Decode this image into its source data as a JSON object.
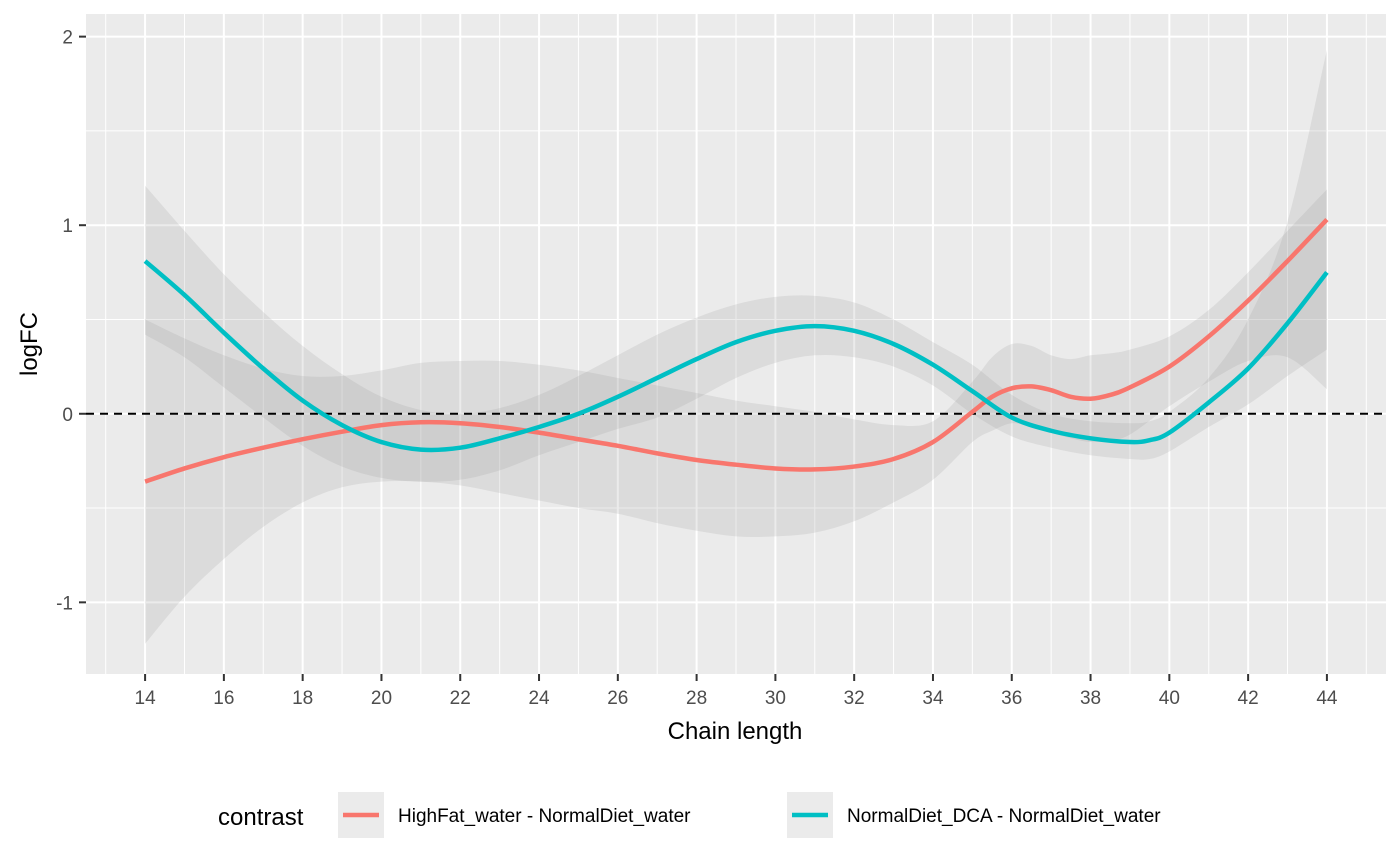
{
  "chart_data": {
    "type": "line",
    "xlabel": "Chain length",
    "ylabel": "logFC",
    "xlim": [
      12.5,
      45.5
    ],
    "ylim": [
      -1.38,
      2.12
    ],
    "x_ticks": [
      14,
      16,
      18,
      20,
      22,
      24,
      26,
      28,
      30,
      32,
      34,
      36,
      38,
      40,
      42,
      44
    ],
    "x_tick_labels": [
      "14",
      "16",
      "18",
      "20",
      "22",
      "24",
      "26",
      "28",
      "30",
      "32",
      "34",
      "36",
      "38",
      "40",
      "42",
      "44"
    ],
    "y_ticks": [
      -1,
      0,
      1,
      2
    ],
    "y_tick_labels": [
      "-1",
      "0",
      "1",
      "2"
    ],
    "reference_line": {
      "y": 0,
      "style": "dashed",
      "color": "#000000"
    },
    "grid": true,
    "background": "#ebebeb",
    "legend": {
      "title": "contrast",
      "position": "bottom",
      "items": [
        {
          "label": "HighFat_water - NormalDiet_water",
          "color": "#F8766D"
        },
        {
          "label": "NormalDiet_DCA - NormalDiet_water",
          "color": "#00BFC4"
        }
      ]
    },
    "series": [
      {
        "name": "HighFat_water - NormalDiet_water",
        "color": "#F8766D",
        "x": [
          14,
          15,
          16,
          17,
          18,
          19,
          20,
          21,
          22,
          23,
          24,
          25,
          26,
          27,
          28,
          29,
          30,
          31,
          32,
          33,
          34,
          35,
          35.5,
          36,
          36.5,
          37,
          37.5,
          38,
          38.5,
          39,
          40,
          41,
          42,
          43,
          44
        ],
        "y": [
          -0.36,
          -0.29,
          -0.23,
          -0.18,
          -0.135,
          -0.095,
          -0.06,
          -0.045,
          -0.05,
          -0.07,
          -0.1,
          -0.135,
          -0.17,
          -0.21,
          -0.245,
          -0.27,
          -0.29,
          -0.295,
          -0.28,
          -0.24,
          -0.15,
          0.01,
          0.09,
          0.135,
          0.145,
          0.125,
          0.09,
          0.08,
          0.1,
          0.14,
          0.25,
          0.41,
          0.6,
          0.81,
          1.03
        ],
        "ci_upper": [
          0.5,
          0.4,
          0.31,
          0.24,
          0.2,
          0.2,
          0.23,
          0.27,
          0.28,
          0.28,
          0.26,
          0.23,
          0.19,
          0.15,
          0.11,
          0.07,
          0.04,
          0.01,
          -0.03,
          -0.06,
          -0.04,
          0.17,
          0.3,
          0.37,
          0.36,
          0.31,
          0.29,
          0.31,
          0.32,
          0.34,
          0.41,
          0.55,
          0.75,
          0.97,
          1.19
        ],
        "ci_lower": [
          -1.22,
          -0.97,
          -0.77,
          -0.6,
          -0.47,
          -0.39,
          -0.36,
          -0.36,
          -0.38,
          -0.42,
          -0.46,
          -0.5,
          -0.53,
          -0.58,
          -0.62,
          -0.65,
          -0.65,
          -0.63,
          -0.57,
          -0.47,
          -0.35,
          -0.15,
          -0.09,
          -0.05,
          -0.07,
          -0.1,
          -0.13,
          -0.15,
          -0.14,
          -0.11,
          0.04,
          0.17,
          0.28,
          0.3,
          0.13
        ]
      },
      {
        "name": "NormalDiet_DCA - NormalDiet_water",
        "color": "#00BFC4",
        "x": [
          14,
          15,
          16,
          17,
          18,
          19,
          20,
          21,
          22,
          23,
          24,
          25,
          26,
          27,
          28,
          29,
          30,
          31,
          32,
          33,
          34,
          35,
          36,
          37,
          38,
          39,
          39.5,
          40,
          41,
          42,
          43,
          44
        ],
        "y": [
          0.81,
          0.63,
          0.43,
          0.24,
          0.07,
          -0.06,
          -0.15,
          -0.19,
          -0.18,
          -0.13,
          -0.07,
          0.0,
          0.09,
          0.19,
          0.29,
          0.38,
          0.44,
          0.465,
          0.44,
          0.37,
          0.26,
          0.12,
          -0.02,
          -0.09,
          -0.13,
          -0.15,
          -0.14,
          -0.1,
          0.06,
          0.24,
          0.48,
          0.75
        ],
        "ci_upper": [
          1.21,
          0.97,
          0.74,
          0.54,
          0.36,
          0.21,
          0.09,
          0.02,
          0.0,
          0.03,
          0.1,
          0.2,
          0.31,
          0.42,
          0.51,
          0.58,
          0.62,
          0.625,
          0.59,
          0.5,
          0.38,
          0.26,
          0.1,
          0.0,
          -0.04,
          -0.05,
          -0.04,
          0.01,
          0.19,
          0.5,
          1.02,
          1.93
        ],
        "ci_lower": [
          0.42,
          0.3,
          0.14,
          -0.02,
          -0.17,
          -0.28,
          -0.34,
          -0.36,
          -0.35,
          -0.3,
          -0.22,
          -0.15,
          -0.08,
          -0.02,
          0.08,
          0.19,
          0.27,
          0.31,
          0.3,
          0.25,
          0.15,
          0.0,
          -0.12,
          -0.18,
          -0.22,
          -0.24,
          -0.24,
          -0.2,
          -0.07,
          0.05,
          0.2,
          0.34
        ]
      }
    ]
  }
}
